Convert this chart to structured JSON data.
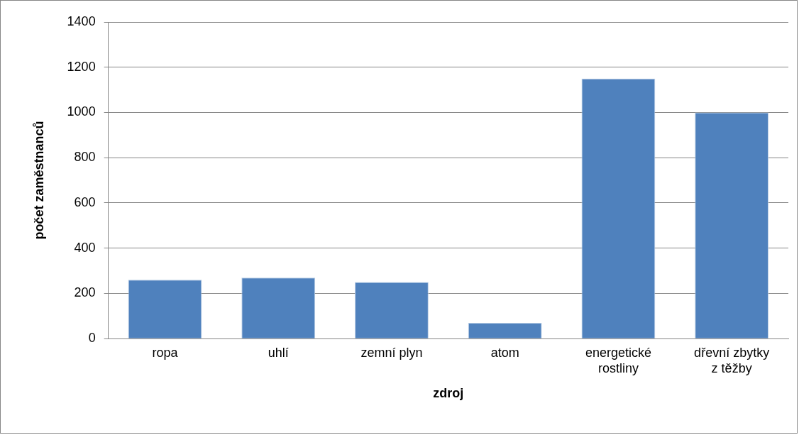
{
  "chart_data": {
    "type": "bar",
    "categories": [
      "ropa",
      "uhlí",
      "zemní plyn",
      "atom",
      "energetické rostliny",
      "dřevní zbytky z těžby"
    ],
    "values": [
      260,
      270,
      250,
      70,
      1150,
      1000
    ],
    "color": "#4f81bd",
    "xlabel": "zdroj",
    "ylabel": "počet zaměstnanců",
    "ylim": [
      0,
      1400
    ],
    "yticks": [
      0,
      200,
      400,
      600,
      800,
      1000,
      1200,
      1400
    ],
    "grid": "y",
    "legend": false
  }
}
